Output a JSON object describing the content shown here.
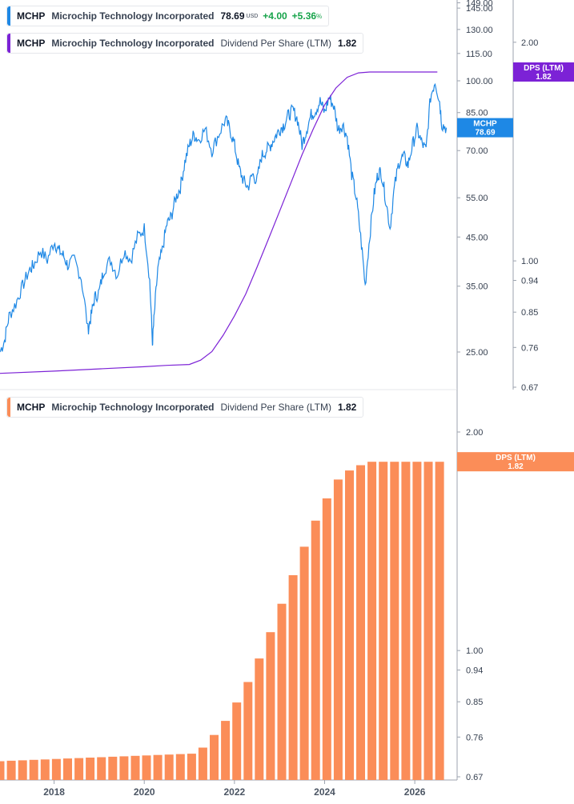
{
  "legend_price": {
    "ticker": "MCHP",
    "name": "Microchip Technology Incorporated",
    "value": "78.69",
    "currency": "USD",
    "change": "+4.00",
    "change_pct": "+5.36",
    "pct_sign": "%"
  },
  "legend_dps_top": {
    "ticker": "MCHP",
    "name": "Microchip Technology Incorporated",
    "series": "Dividend Per Share (LTM)",
    "value": "1.82"
  },
  "legend_dps_bottom": {
    "ticker": "MCHP",
    "name": "Microchip Technology Incorporated",
    "series": "Dividend Per Share (LTM)",
    "value": "1.82"
  },
  "colors": {
    "price_line": "#1e88e5",
    "dps_line": "#7c22d6",
    "bars": "#fb8d58",
    "axis": "#9ca3af",
    "positive": "#16a34a"
  },
  "chart_data": [
    {
      "type": "line",
      "title": "MCHP Microchip Technology Incorporated",
      "x_range": [
        "2016-10",
        "2026-06"
      ],
      "y_scale": "log",
      "y_ticks": [
        25.0,
        35.0,
        45.0,
        55.0,
        70.0,
        85.0,
        100.0,
        115.0,
        130.0,
        145.0,
        149.0
      ],
      "series": [
        {
          "name": "MCHP",
          "axis": "price",
          "last_value_label": "78.69",
          "x": [
            2016.8,
            2016.9,
            2017.0,
            2017.15,
            2017.3,
            2017.45,
            2017.55,
            2017.7,
            2017.85,
            2018.0,
            2018.1,
            2018.2,
            2018.3,
            2018.45,
            2018.6,
            2018.75,
            2018.82,
            2018.9,
            2019.0,
            2019.1,
            2019.25,
            2019.4,
            2019.55,
            2019.7,
            2019.85,
            2020.0,
            2020.12,
            2020.18,
            2020.22,
            2020.3,
            2020.4,
            2020.5,
            2020.6,
            2020.7,
            2020.8,
            2020.9,
            2021.0,
            2021.1,
            2021.2,
            2021.35,
            2021.5,
            2021.65,
            2021.8,
            2021.9,
            2022.0,
            2022.1,
            2022.2,
            2022.3,
            2022.4,
            2022.5,
            2022.6,
            2022.7,
            2022.8,
            2022.9,
            2023.0,
            2023.1,
            2023.2,
            2023.3,
            2023.4,
            2023.5,
            2023.6,
            2023.7,
            2023.8,
            2023.9,
            2024.0,
            2024.1,
            2024.2,
            2024.3,
            2024.4,
            2024.5,
            2024.6,
            2024.7,
            2024.8,
            2024.9,
            2025.0,
            2025.1,
            2025.18,
            2025.25,
            2025.35,
            2025.45,
            2025.55,
            2025.65,
            2025.75,
            2025.85,
            2025.95,
            2026.05,
            2026.15,
            2026.25,
            2026.35,
            2026.45,
            2026.55,
            2026.6,
            2026.7
          ],
          "values": [
            25.0,
            26.5,
            30.0,
            32.0,
            35.0,
            38.0,
            39.0,
            42.0,
            40.0,
            44.0,
            42.0,
            41.0,
            39.0,
            40.0,
            36.5,
            28.0,
            30.0,
            33.0,
            34.0,
            38.0,
            40.0,
            37.0,
            42.0,
            40.0,
            45.0,
            47.0,
            36.0,
            26.0,
            30.0,
            38.0,
            42.0,
            48.0,
            50.0,
            55.0,
            58.0,
            66.0,
            72.0,
            76.0,
            74.0,
            78.0,
            70.0,
            76.0,
            82.0,
            78.0,
            72.0,
            64.0,
            60.0,
            58.0,
            62.0,
            60.0,
            68.0,
            70.0,
            72.0,
            75.0,
            78.0,
            80.0,
            84.0,
            86.0,
            82.0,
            72.0,
            78.0,
            84.0,
            86.0,
            90.0,
            85.0,
            92.0,
            88.0,
            78.0,
            80.0,
            75.0,
            62.0,
            55.0,
            45.0,
            35.0,
            45.0,
            56.0,
            62.0,
            63.0,
            55.0,
            47.0,
            58.0,
            66.0,
            68.0,
            65.0,
            72.0,
            78.0,
            73.0,
            70.0,
            92.0,
            100.0,
            90.0,
            80.0,
            78.69
          ]
        },
        {
          "name": "DPS (LTM)",
          "axis": "dps",
          "last_value_label": "1.82",
          "x": [
            2016.8,
            2018.0,
            2019.0,
            2020.0,
            2020.5,
            2021.0,
            2021.25,
            2021.5,
            2021.75,
            2022.0,
            2022.25,
            2022.5,
            2022.75,
            2023.0,
            2023.25,
            2023.5,
            2023.75,
            2024.0,
            2024.25,
            2024.5,
            2024.75,
            2025.0,
            2025.5,
            2026.0,
            2026.5
          ],
          "values": [
            0.7,
            0.705,
            0.71,
            0.715,
            0.718,
            0.72,
            0.73,
            0.75,
            0.79,
            0.84,
            0.9,
            0.98,
            1.07,
            1.17,
            1.28,
            1.4,
            1.52,
            1.64,
            1.73,
            1.79,
            1.815,
            1.82,
            1.82,
            1.82,
            1.82
          ]
        }
      ],
      "dps_axis_ticks": [
        0.67,
        0.76,
        0.85,
        0.94,
        1.0,
        2.0
      ],
      "flags": [
        {
          "label": "MCHP",
          "value": "78.69"
        },
        {
          "label": "DPS (LTM)",
          "value": "1.82"
        }
      ]
    },
    {
      "type": "bar",
      "title": "MCHP Microchip Technology Incorporated Dividend Per Share (LTM)",
      "y_scale": "log",
      "y_ticks": [
        0.67,
        0.76,
        0.85,
        0.94,
        1.0,
        2.0
      ],
      "x_ticks": [
        "2018",
        "2020",
        "2022",
        "2024",
        "2026"
      ],
      "flag": {
        "label": "DPS (LTM)",
        "value": "1.82"
      },
      "series": [
        {
          "name": "Dividend Per Share (LTM)",
          "x": [
            2016.8,
            2017.05,
            2017.3,
            2017.55,
            2017.8,
            2018.05,
            2018.3,
            2018.55,
            2018.8,
            2019.05,
            2019.3,
            2019.55,
            2019.8,
            2020.05,
            2020.3,
            2020.55,
            2020.8,
            2021.05,
            2021.3,
            2021.55,
            2021.8,
            2022.05,
            2022.3,
            2022.55,
            2022.8,
            2023.05,
            2023.3,
            2023.55,
            2023.8,
            2024.05,
            2024.3,
            2024.55,
            2024.8,
            2025.05,
            2025.3,
            2025.55,
            2025.8,
            2026.05,
            2026.3,
            2026.55
          ],
          "values": [
            0.704,
            0.705,
            0.706,
            0.707,
            0.708,
            0.709,
            0.71,
            0.711,
            0.712,
            0.713,
            0.714,
            0.715,
            0.716,
            0.717,
            0.718,
            0.719,
            0.72,
            0.721,
            0.735,
            0.765,
            0.8,
            0.848,
            0.905,
            0.975,
            1.06,
            1.16,
            1.27,
            1.39,
            1.51,
            1.62,
            1.72,
            1.77,
            1.8,
            1.82,
            1.82,
            1.82,
            1.82,
            1.82,
            1.82,
            1.82
          ]
        }
      ]
    }
  ]
}
